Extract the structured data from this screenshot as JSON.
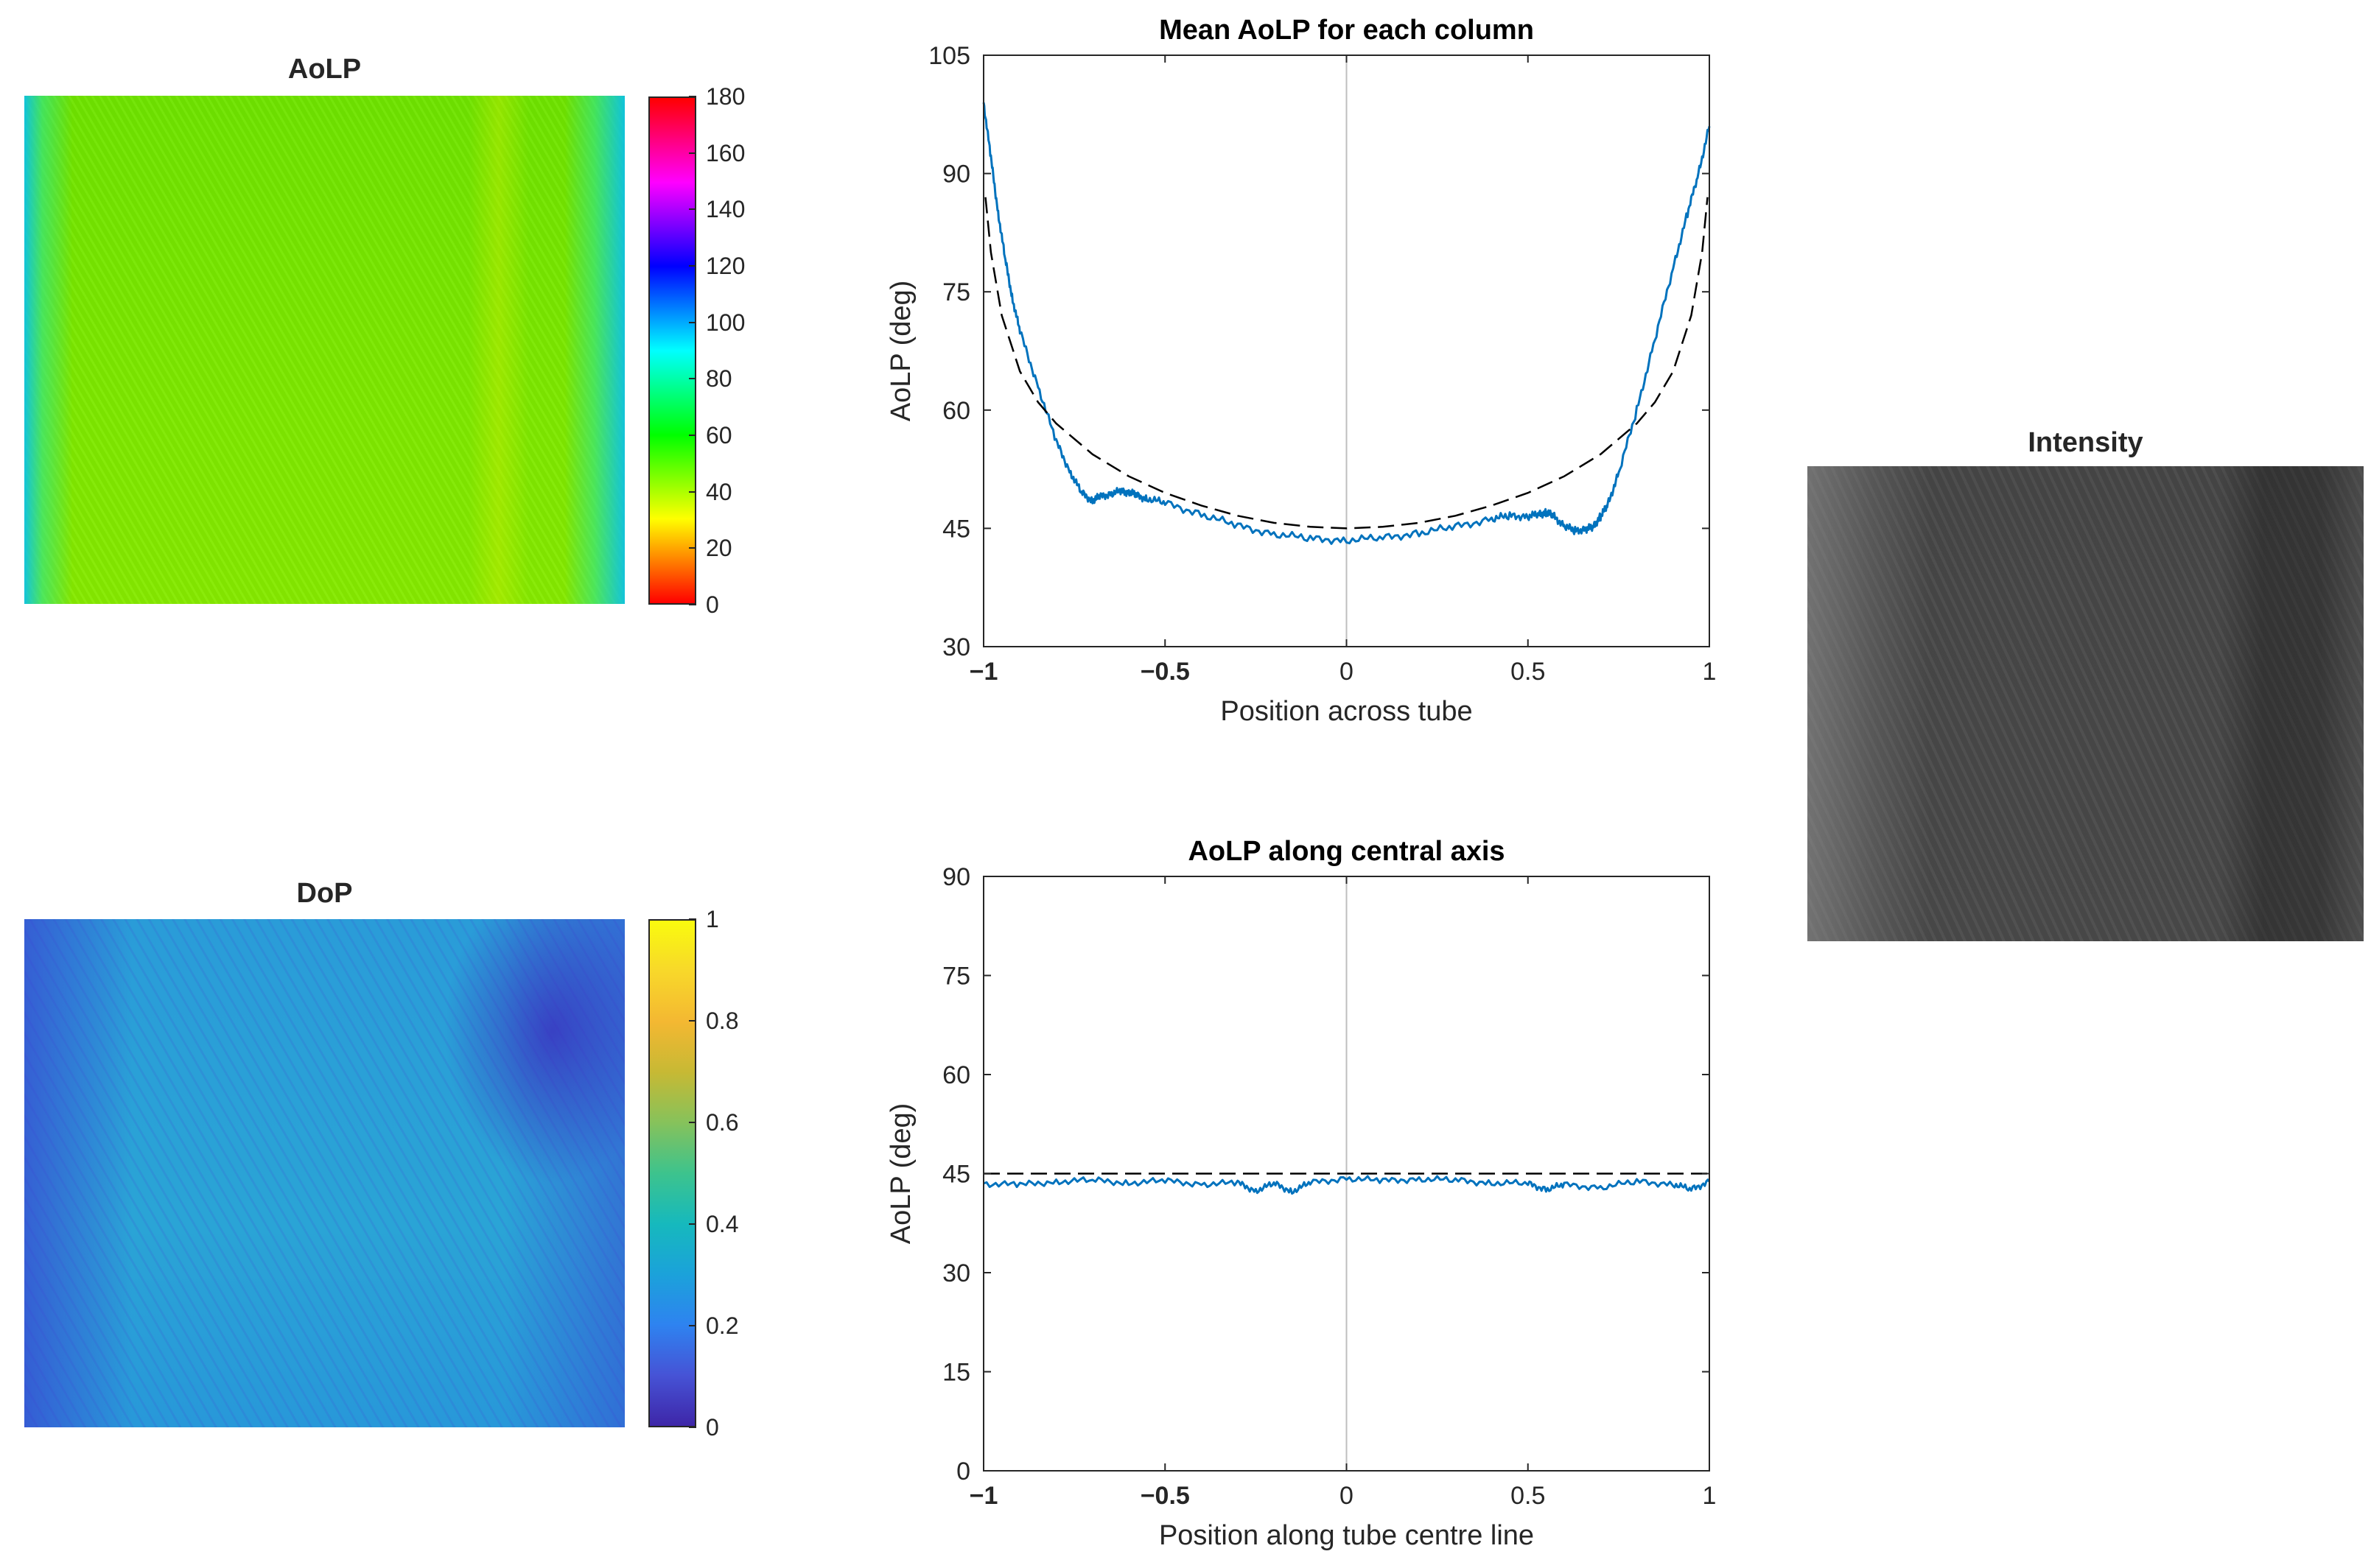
{
  "aolp_map": {
    "title": "AoLP",
    "colorbar_ticks": [
      "0",
      "20",
      "40",
      "60",
      "80",
      "100",
      "120",
      "140",
      "160",
      "180"
    ],
    "colormap": "hsv"
  },
  "dop_map": {
    "title": "DoP",
    "colorbar_ticks": [
      "0",
      "0.2",
      "0.4",
      "0.6",
      "0.8",
      "1"
    ],
    "colormap": "parula"
  },
  "intensity_map": {
    "title": "Intensity",
    "colormap": "gray"
  },
  "chart_data": [
    {
      "type": "line",
      "title": "Mean AoLP for each column",
      "xlabel": "Position across tube",
      "ylabel": "AoLP (deg)",
      "xlim": [
        -1,
        1
      ],
      "ylim": [
        30,
        105
      ],
      "xticks": [
        -1,
        -0.5,
        0,
        0.5,
        1
      ],
      "xtick_labels": [
        "−1",
        "−0.5",
        "0",
        "0.5",
        "1"
      ],
      "yticks": [
        30,
        45,
        60,
        75,
        90,
        105
      ],
      "ytick_labels": [
        "30",
        "45",
        "60",
        "75",
        "90",
        "105"
      ],
      "vline_x": 0,
      "series": [
        {
          "style": "solid",
          "color": "#0072BD",
          "x": [
            -1,
            -0.98,
            -0.96,
            -0.94,
            -0.92,
            -0.9,
            -0.85,
            -0.8,
            -0.76,
            -0.73,
            -0.7,
            -0.68,
            -0.65,
            -0.62,
            -0.6,
            -0.58,
            -0.55,
            -0.5,
            -0.4,
            -0.3,
            -0.2,
            -0.1,
            0,
            0.1,
            0.2,
            0.3,
            0.4,
            0.45,
            0.5,
            0.53,
            0.55,
            0.57,
            0.6,
            0.63,
            0.66,
            0.68,
            0.7,
            0.72,
            0.75,
            0.8,
            0.85,
            0.9,
            0.94,
            0.97,
            1
          ],
          "y": [
            99,
            92,
            85,
            79,
            74,
            70,
            63,
            56,
            52,
            49.5,
            48.5,
            49,
            49.4,
            49.7,
            49.6,
            49.2,
            48.8,
            48.2,
            46.8,
            45.3,
            44.3,
            43.7,
            43.5,
            43.8,
            44.4,
            45.2,
            46.2,
            46.6,
            46.5,
            46.8,
            47.0,
            46.6,
            45.3,
            44.7,
            44.9,
            45.2,
            46.5,
            48,
            52,
            60,
            69,
            78,
            85,
            90,
            96
          ]
        },
        {
          "style": "dashed",
          "color": "#000000",
          "x": [
            -0.995,
            -0.98,
            -0.95,
            -0.9,
            -0.85,
            -0.8,
            -0.7,
            -0.6,
            -0.5,
            -0.4,
            -0.3,
            -0.2,
            -0.1,
            0,
            0.1,
            0.2,
            0.3,
            0.4,
            0.5,
            0.6,
            0.7,
            0.8,
            0.85,
            0.9,
            0.95,
            0.98,
            0.995
          ],
          "y": [
            87,
            80,
            72,
            64.9,
            61.0,
            58.3,
            54.4,
            51.6,
            49.5,
            47.9,
            46.6,
            45.7,
            45.2,
            45,
            45.2,
            45.7,
            46.6,
            47.9,
            49.5,
            51.6,
            54.4,
            58.3,
            61.0,
            64.9,
            72,
            80,
            87
          ]
        }
      ]
    },
    {
      "type": "line",
      "title": "AoLP along central axis",
      "xlabel": "Position along tube centre line",
      "ylabel": "AoLP (deg)",
      "xlim": [
        -1,
        1
      ],
      "ylim": [
        0,
        90
      ],
      "xticks": [
        -1,
        -0.5,
        0,
        0.5,
        1
      ],
      "xtick_labels": [
        "−1",
        "−0.5",
        "0",
        "0.5",
        "1"
      ],
      "yticks": [
        0,
        15,
        30,
        45,
        60,
        75,
        90
      ],
      "ytick_labels": [
        "0",
        "15",
        "30",
        "45",
        "60",
        "75",
        "90"
      ],
      "vline_x": 0,
      "series": [
        {
          "style": "solid",
          "color": "#0072BD",
          "x": [
            -1,
            -0.9,
            -0.8,
            -0.7,
            -0.6,
            -0.5,
            -0.4,
            -0.3,
            -0.25,
            -0.2,
            -0.15,
            -0.1,
            0,
            0.1,
            0.2,
            0.3,
            0.4,
            0.5,
            0.55,
            0.6,
            0.7,
            0.8,
            0.9,
            0.95,
            1
          ],
          "y": [
            43.5,
            43.3,
            43.8,
            44.0,
            43.6,
            43.9,
            43.4,
            43.6,
            42.4,
            43.5,
            42.3,
            43.6,
            44.3,
            43.9,
            44.2,
            44.0,
            43.6,
            43.5,
            42.6,
            43.3,
            42.9,
            43.8,
            43.4,
            42.6,
            43.8
          ]
        },
        {
          "style": "dashed",
          "color": "#000000",
          "x": [
            -1,
            1
          ],
          "y": [
            45,
            45
          ]
        }
      ]
    }
  ]
}
